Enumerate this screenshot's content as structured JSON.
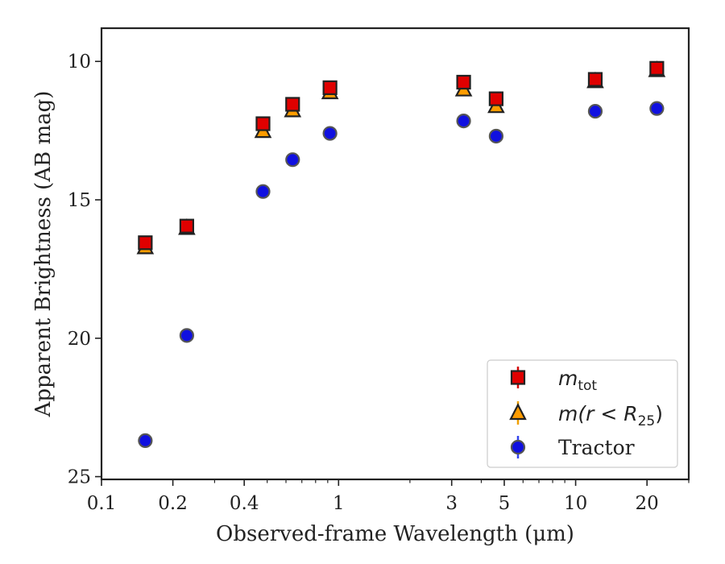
{
  "chart_data": {
    "type": "scatter",
    "title": "",
    "xlabel": "Observed-frame Wavelength (μm)",
    "ylabel": "Apparent Brightness (AB mag)",
    "x_scale": "log",
    "y_inverted": true,
    "xlim": [
      0.1,
      30
    ],
    "ylim": [
      25.1,
      8.8
    ],
    "x_ticks": [
      0.1,
      0.2,
      0.4,
      1,
      3,
      5,
      10,
      20
    ],
    "x_tick_labels": [
      "0.1",
      "0.2",
      "0.4",
      "1",
      "3",
      "5",
      "10",
      "20"
    ],
    "y_ticks": [
      10,
      15,
      20,
      25
    ],
    "y_tick_labels": [
      "10",
      "15",
      "20",
      "25"
    ],
    "grid": false,
    "legend_position": "bottom-right",
    "legend": {
      "mtot_base": "m",
      "mtot_sub": "tot",
      "mr_prefix": "m(r < R",
      "mr_sub": "25",
      "mr_suffix": ")",
      "tractor": "Tractor"
    },
    "series": [
      {
        "name": "m_tot",
        "marker": "square",
        "color": "#e00000",
        "errorbar_color": "#d40000",
        "x": [
          0.153,
          0.229,
          0.48,
          0.64,
          0.92,
          3.37,
          4.62,
          12.1,
          22.0
        ],
        "y": [
          16.55,
          15.95,
          12.25,
          11.55,
          10.95,
          10.75,
          11.35,
          10.65,
          10.25
        ]
      },
      {
        "name": "m(r < R25)",
        "marker": "triangle",
        "color": "#ff9c00",
        "errorbar_color": "#f0a000",
        "x": [
          0.153,
          0.229,
          0.48,
          0.64,
          0.92,
          3.37,
          4.62,
          12.1,
          22.0
        ],
        "y": [
          16.7,
          16.0,
          12.5,
          11.75,
          11.1,
          11.0,
          11.6,
          10.7,
          10.3
        ]
      },
      {
        "name": "Tractor",
        "marker": "circle",
        "color": "#1010e0",
        "errorbar_color": "#3344ee",
        "x": [
          0.153,
          0.229,
          0.48,
          0.64,
          0.92,
          3.37,
          4.62,
          12.1,
          22.0
        ],
        "y": [
          23.7,
          19.9,
          14.7,
          13.55,
          12.6,
          12.15,
          12.7,
          11.8,
          11.7
        ]
      }
    ]
  }
}
